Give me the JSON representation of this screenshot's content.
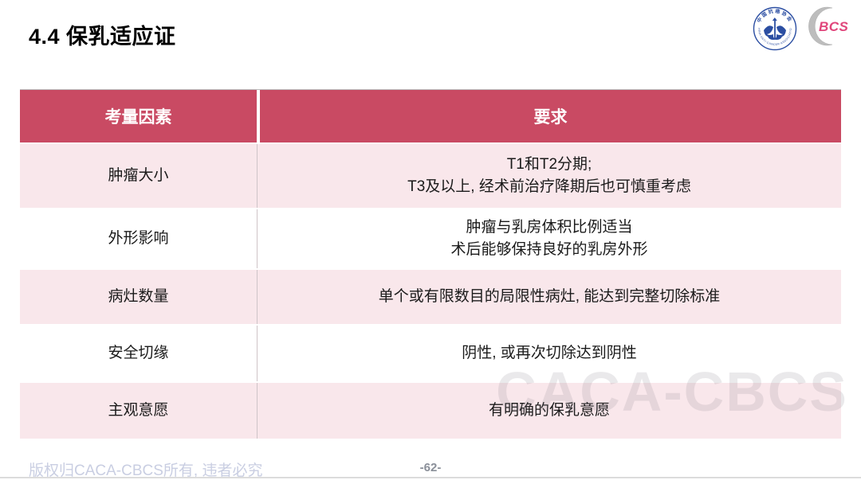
{
  "slide": {
    "title": "4.4 保乳适应证",
    "watermark": "CACA-CBCS",
    "copyright": "版权归CACA-CBCS所有, 违者必究",
    "page_number": "-62-"
  },
  "logos": {
    "caca_top_text": "中国抗癌协会",
    "caca_ring_text": "CHINA ANTI-CANCER ASSOCIATION",
    "bcs_label": "BCS"
  },
  "table": {
    "headers": [
      "考量因素",
      "要求"
    ],
    "rows": [
      {
        "factor": "肿瘤大小",
        "requirement_lines": [
          "T1和T2分期;",
          "T3及以上, 经术前治疗降期后也可慎重考虑"
        ]
      },
      {
        "factor": "外形影响",
        "requirement_lines": [
          "肿瘤与乳房体积比例适当",
          "术后能够保持良好的乳房外形"
        ]
      },
      {
        "factor": "病灶数量",
        "requirement_lines": [
          "单个或有限数目的局限性病灶, 能达到完整切除标准"
        ]
      },
      {
        "factor": "安全切缘",
        "requirement_lines": [
          "阴性, 或再次切除达到阴性"
        ]
      },
      {
        "factor": "主观意愿",
        "requirement_lines": [
          "有明确的保乳意愿"
        ]
      }
    ]
  },
  "colors": {
    "header_bg": "#C94A63",
    "row_pink": "#F9E7EB",
    "row_white": "#FFFFFF",
    "footer_text": "#C9CEE2",
    "page_number_text": "#8A8F99",
    "bcs_pink": "#E0457B",
    "caca_blue": "#2B4EA2"
  }
}
